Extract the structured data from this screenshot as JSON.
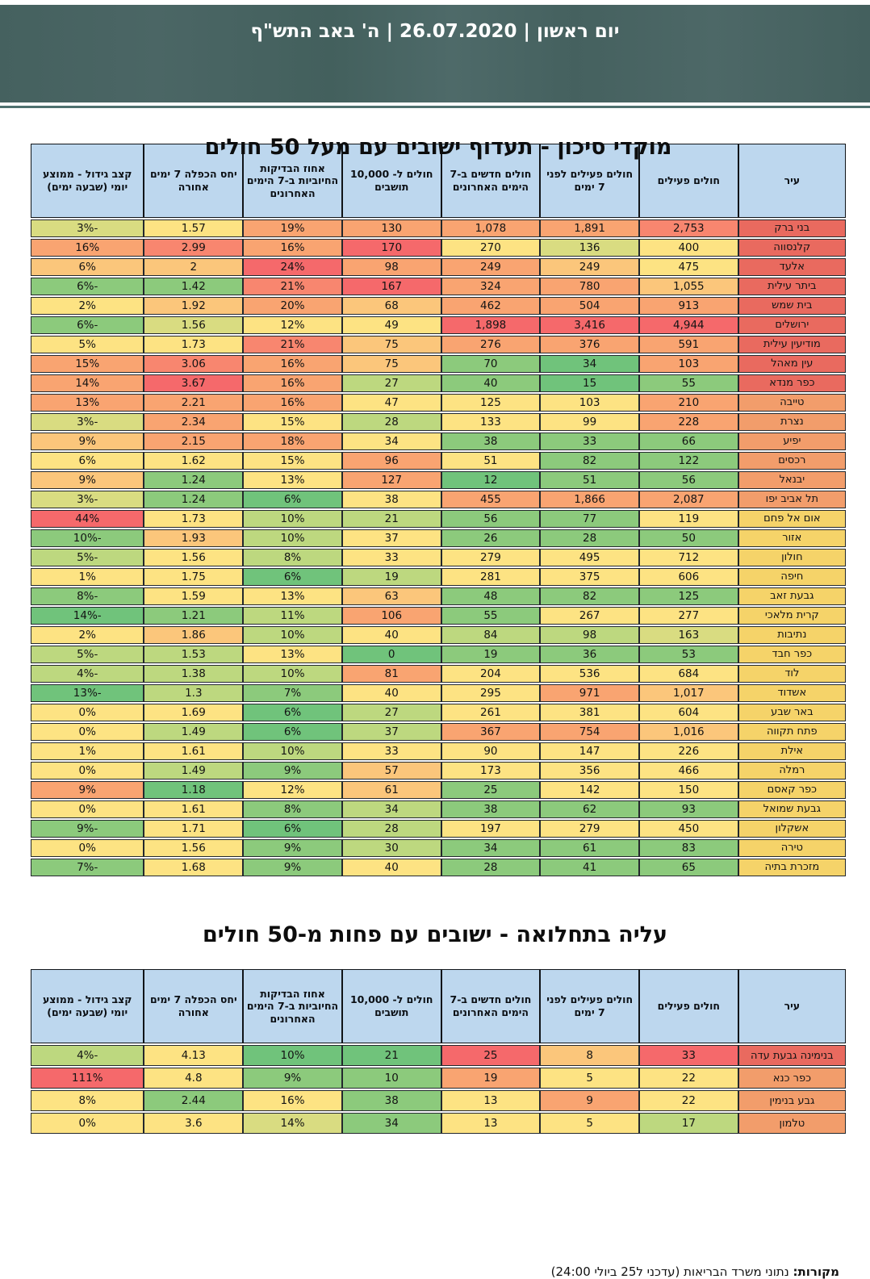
{
  "banner": {
    "title": "יום ראשון | 26.07.2020 | ה' באב התש\"ף"
  },
  "columns": [
    "עיר",
    "חולים פעילים",
    "חולים פעילים לפני 7 ימים",
    "חולים חדשים ב-7 הימים האחרונים",
    "חולים ל- 10,000 תושבים",
    "אחוז הבדיקות החיוביות ב-7 הימים האחרונים",
    "יחס הכפלה 7 ימים אחורה",
    "קצב גידול - ממוצע יומי (שבעה ימים)"
  ],
  "palette": {
    "R": "#f5696b",
    "S": "#f8866f",
    "O": "#f9a471",
    "LO": "#fbc67b",
    "Y": "#fde383",
    "YG": "#d9dc81",
    "LG": "#bdd87f",
    "G": "#8cca7c",
    "DG": "#70c37b",
    "cityR": "#e96a5f",
    "cityO": "#f29d6b",
    "cityY": "#f5d369",
    "header": "#bdd7ee"
  },
  "table1": {
    "title": "מוקדי סיכון  -  תעדוף ישובים עם מעל 50 חולים",
    "rows": [
      {
        "city": "בני ברק",
        "tier": "cityR",
        "values": [
          "2,753",
          "1,891",
          "1,078",
          "130",
          "19%",
          "1.57",
          "-3%"
        ],
        "colors": [
          "S",
          "O",
          "O",
          "O",
          "O",
          "Y",
          "YG"
        ]
      },
      {
        "city": "קלנסווה",
        "tier": "cityR",
        "values": [
          "400",
          "136",
          "270",
          "170",
          "16%",
          "2.99",
          "16%"
        ],
        "colors": [
          "Y",
          "YG",
          "Y",
          "R",
          "O",
          "S",
          "O"
        ]
      },
      {
        "city": "אלעד",
        "tier": "cityR",
        "values": [
          "475",
          "249",
          "249",
          "98",
          "24%",
          "2",
          "6%"
        ],
        "colors": [
          "Y",
          "LO",
          "O",
          "O",
          "R",
          "LO",
          "LO"
        ]
      },
      {
        "city": "ביתר עילית",
        "tier": "cityR",
        "values": [
          "1,055",
          "780",
          "324",
          "167",
          "21%",
          "1.42",
          "-6%"
        ],
        "colors": [
          "LO",
          "O",
          "O",
          "R",
          "S",
          "G",
          "G"
        ]
      },
      {
        "city": "בית שמש",
        "tier": "cityR",
        "values": [
          "913",
          "504",
          "462",
          "68",
          "20%",
          "1.92",
          "2%"
        ],
        "colors": [
          "O",
          "O",
          "O",
          "LO",
          "O",
          "LO",
          "Y"
        ]
      },
      {
        "city": "ירושלים",
        "tier": "cityR",
        "values": [
          "4,944",
          "3,416",
          "1,898",
          "49",
          "12%",
          "1.56",
          "-6%"
        ],
        "colors": [
          "R",
          "R",
          "R",
          "Y",
          "Y",
          "YG",
          "G"
        ]
      },
      {
        "city": "מודיעין עילית",
        "tier": "cityR",
        "values": [
          "591",
          "376",
          "276",
          "75",
          "21%",
          "1.73",
          "5%"
        ],
        "colors": [
          "O",
          "O",
          "O",
          "LO",
          "S",
          "Y",
          "Y"
        ]
      },
      {
        "city": "עין מאהל",
        "tier": "cityR",
        "values": [
          "103",
          "34",
          "70",
          "75",
          "16%",
          "3.06",
          "15%"
        ],
        "colors": [
          "O",
          "DG",
          "G",
          "LO",
          "O",
          "S",
          "O"
        ]
      },
      {
        "city": "כפר מנדא",
        "tier": "cityR",
        "values": [
          "55",
          "15",
          "40",
          "27",
          "16%",
          "3.67",
          "14%"
        ],
        "colors": [
          "G",
          "DG",
          "G",
          "LG",
          "O",
          "R",
          "O"
        ]
      },
      {
        "city": "טייבה",
        "tier": "cityO",
        "values": [
          "210",
          "103",
          "125",
          "47",
          "16%",
          "2.21",
          "13%"
        ],
        "colors": [
          "O",
          "Y",
          "Y",
          "Y",
          "O",
          "O",
          "O"
        ]
      },
      {
        "city": "נצרת",
        "tier": "cityO",
        "values": [
          "228",
          "99",
          "133",
          "28",
          "15%",
          "2.34",
          "-3%"
        ],
        "colors": [
          "O",
          "Y",
          "Y",
          "LG",
          "Y",
          "O",
          "YG"
        ]
      },
      {
        "city": "יפיע",
        "tier": "cityO",
        "values": [
          "66",
          "33",
          "38",
          "34",
          "18%",
          "2.15",
          "9%"
        ],
        "colors": [
          "G",
          "G",
          "G",
          "Y",
          "O",
          "O",
          "LO"
        ]
      },
      {
        "city": "רכסים",
        "tier": "cityO",
        "values": [
          "122",
          "82",
          "51",
          "96",
          "15%",
          "1.62",
          "6%"
        ],
        "colors": [
          "G",
          "G",
          "Y",
          "O",
          "Y",
          "Y",
          "Y"
        ]
      },
      {
        "city": "יבנאל",
        "tier": "cityO",
        "values": [
          "56",
          "51",
          "12",
          "127",
          "13%",
          "1.24",
          "9%"
        ],
        "colors": [
          "G",
          "G",
          "DG",
          "O",
          "Y",
          "G",
          "LO"
        ]
      },
      {
        "city": "תל אביב יפו",
        "tier": "cityO",
        "values": [
          "2,087",
          "1,866",
          "455",
          "38",
          "6%",
          "1.24",
          "-3%"
        ],
        "colors": [
          "O",
          "O",
          "O",
          "Y",
          "DG",
          "G",
          "YG"
        ]
      },
      {
        "city": "אום אל פחם",
        "tier": "cityY",
        "values": [
          "119",
          "77",
          "56",
          "21",
          "10%",
          "1.73",
          "44%"
        ],
        "colors": [
          "Y",
          "G",
          "G",
          "LG",
          "LG",
          "Y",
          "R"
        ]
      },
      {
        "city": "אזור",
        "tier": "cityY",
        "values": [
          "50",
          "28",
          "26",
          "37",
          "10%",
          "1.93",
          "-10%"
        ],
        "colors": [
          "G",
          "G",
          "G",
          "Y",
          "LG",
          "LO",
          "G"
        ]
      },
      {
        "city": "חולון",
        "tier": "cityY",
        "values": [
          "712",
          "495",
          "279",
          "33",
          "8%",
          "1.56",
          "-5%"
        ],
        "colors": [
          "Y",
          "Y",
          "Y",
          "Y",
          "LG",
          "Y",
          "LG"
        ]
      },
      {
        "city": "חיפה",
        "tier": "cityY",
        "values": [
          "606",
          "375",
          "281",
          "19",
          "6%",
          "1.75",
          "1%"
        ],
        "colors": [
          "Y",
          "Y",
          "Y",
          "LG",
          "DG",
          "Y",
          "Y"
        ]
      },
      {
        "city": "גבעת זאב",
        "tier": "cityY",
        "values": [
          "125",
          "82",
          "48",
          "63",
          "13%",
          "1.59",
          "-8%"
        ],
        "colors": [
          "G",
          "G",
          "G",
          "LO",
          "Y",
          "Y",
          "G"
        ]
      },
      {
        "city": "קרית מלאכי",
        "tier": "cityY",
        "values": [
          "277",
          "267",
          "55",
          "106",
          "11%",
          "1.21",
          "-14%"
        ],
        "colors": [
          "Y",
          "Y",
          "G",
          "O",
          "LG",
          "G",
          "DG"
        ]
      },
      {
        "city": "נתיבות",
        "tier": "cityY",
        "values": [
          "163",
          "98",
          "84",
          "40",
          "10%",
          "1.86",
          "2%"
        ],
        "colors": [
          "YG",
          "LG",
          "LG",
          "Y",
          "LG",
          "LO",
          "Y"
        ]
      },
      {
        "city": "כפר חבד",
        "tier": "cityY",
        "values": [
          "53",
          "36",
          "19",
          "0",
          "13%",
          "1.53",
          "-5%"
        ],
        "colors": [
          "G",
          "G",
          "G",
          "DG",
          "Y",
          "LG",
          "LG"
        ]
      },
      {
        "city": "לוד",
        "tier": "cityY",
        "values": [
          "684",
          "536",
          "204",
          "81",
          "10%",
          "1.38",
          "-4%"
        ],
        "colors": [
          "Y",
          "Y",
          "Y",
          "O",
          "LG",
          "LG",
          "LG"
        ]
      },
      {
        "city": "אשדוד",
        "tier": "cityY",
        "values": [
          "1,017",
          "971",
          "295",
          "40",
          "7%",
          "1.3",
          "-13%"
        ],
        "colors": [
          "LO",
          "O",
          "Y",
          "Y",
          "G",
          "LG",
          "DG"
        ]
      },
      {
        "city": "באר שבע",
        "tier": "cityY",
        "values": [
          "604",
          "381",
          "261",
          "27",
          "6%",
          "1.69",
          "0%"
        ],
        "colors": [
          "Y",
          "Y",
          "Y",
          "LG",
          "DG",
          "Y",
          "Y"
        ]
      },
      {
        "city": "פתח תקווה",
        "tier": "cityY",
        "values": [
          "1,016",
          "754",
          "367",
          "37",
          "6%",
          "1.49",
          "0%"
        ],
        "colors": [
          "LO",
          "O",
          "O",
          "LG",
          "DG",
          "LG",
          "Y"
        ]
      },
      {
        "city": "אילת",
        "tier": "cityY",
        "values": [
          "226",
          "147",
          "90",
          "33",
          "10%",
          "1.61",
          "1%"
        ],
        "colors": [
          "Y",
          "Y",
          "Y",
          "Y",
          "LG",
          "Y",
          "Y"
        ]
      },
      {
        "city": "רמלה",
        "tier": "cityY",
        "values": [
          "466",
          "356",
          "173",
          "57",
          "9%",
          "1.49",
          "0%"
        ],
        "colors": [
          "Y",
          "Y",
          "Y",
          "LO",
          "G",
          "LG",
          "Y"
        ]
      },
      {
        "city": "כפר קאסם",
        "tier": "cityY",
        "values": [
          "150",
          "142",
          "25",
          "61",
          "12%",
          "1.18",
          "9%"
        ],
        "colors": [
          "Y",
          "Y",
          "G",
          "LO",
          "Y",
          "DG",
          "O"
        ]
      },
      {
        "city": "גבעת שמואל",
        "tier": "cityY",
        "values": [
          "93",
          "62",
          "38",
          "34",
          "8%",
          "1.61",
          "0%"
        ],
        "colors": [
          "G",
          "G",
          "G",
          "LG",
          "G",
          "Y",
          "Y"
        ]
      },
      {
        "city": "אשקלון",
        "tier": "cityY",
        "values": [
          "450",
          "279",
          "197",
          "28",
          "6%",
          "1.71",
          "-9%"
        ],
        "colors": [
          "Y",
          "Y",
          "Y",
          "LG",
          "DG",
          "Y",
          "G"
        ]
      },
      {
        "city": "טירה",
        "tier": "cityY",
        "values": [
          "83",
          "61",
          "34",
          "30",
          "9%",
          "1.56",
          "0%"
        ],
        "colors": [
          "G",
          "G",
          "G",
          "LG",
          "G",
          "Y",
          "Y"
        ]
      },
      {
        "city": "מזכרת בתיה",
        "tier": "cityY",
        "values": [
          "65",
          "41",
          "28",
          "40",
          "9%",
          "1.68",
          "-7%"
        ],
        "colors": [
          "G",
          "G",
          "G",
          "Y",
          "G",
          "Y",
          "G"
        ]
      }
    ]
  },
  "table2": {
    "title": "עליה בתחלואה - ישובים עם פחות מ-50 חולים",
    "rows": [
      {
        "city": "בנימינה גבעת עדה",
        "tier": "cityR",
        "values": [
          "33",
          "8",
          "25",
          "21",
          "10%",
          "4.13",
          "-4%"
        ],
        "colors": [
          "R",
          "LO",
          "R",
          "DG",
          "DG",
          "Y",
          "LG"
        ]
      },
      {
        "city": "כפר כנא",
        "tier": "cityO",
        "values": [
          "22",
          "5",
          "19",
          "10",
          "9%",
          "4.8",
          "111%"
        ],
        "colors": [
          "Y",
          "Y",
          "O",
          "G",
          "G",
          "Y",
          "R"
        ]
      },
      {
        "city": "גבע בנימין",
        "tier": "cityO",
        "values": [
          "22",
          "9",
          "13",
          "38",
          "16%",
          "2.44",
          "8%"
        ],
        "colors": [
          "Y",
          "O",
          "Y",
          "G",
          "Y",
          "G",
          "Y"
        ]
      },
      {
        "city": "טלמון",
        "tier": "cityO",
        "values": [
          "17",
          "5",
          "13",
          "34",
          "14%",
          "3.6",
          "0%"
        ],
        "colors": [
          "LG",
          "Y",
          "Y",
          "G",
          "YG",
          "Y",
          "Y"
        ]
      }
    ]
  },
  "footer": {
    "label": "מקורות:",
    "text": " נתוני משרד הבריאות (עדכני ל25 ביולי 24:00)"
  }
}
